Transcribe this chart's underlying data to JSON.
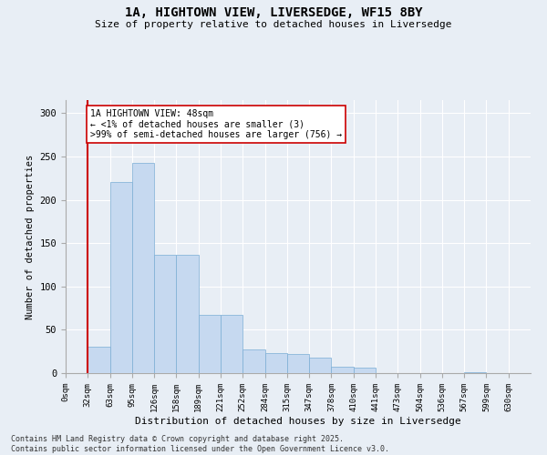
{
  "title_line1": "1A, HIGHTOWN VIEW, LIVERSEDGE, WF15 8BY",
  "title_line2": "Size of property relative to detached houses in Liversedge",
  "xlabel": "Distribution of detached houses by size in Liversedge",
  "ylabel": "Number of detached properties",
  "bin_labels": [
    "0sqm",
    "32sqm",
    "63sqm",
    "95sqm",
    "126sqm",
    "158sqm",
    "189sqm",
    "221sqm",
    "252sqm",
    "284sqm",
    "315sqm",
    "347sqm",
    "378sqm",
    "410sqm",
    "441sqm",
    "473sqm",
    "504sqm",
    "536sqm",
    "567sqm",
    "599sqm",
    "630sqm"
  ],
  "bar_heights": [
    0,
    30,
    220,
    243,
    137,
    137,
    67,
    67,
    27,
    23,
    22,
    18,
    7,
    6,
    0,
    0,
    0,
    0,
    1,
    0,
    0
  ],
  "bar_facecolor": "#c6d9f0",
  "bar_edgecolor": "#7aadd4",
  "vline_x": 1.0,
  "vline_color": "#cc0000",
  "annotation_text": "1A HIGHTOWN VIEW: 48sqm\n← <1% of detached houses are smaller (3)\n>99% of semi-detached houses are larger (756) →",
  "annotation_box_facecolor": "#ffffff",
  "annotation_box_edgecolor": "#cc0000",
  "ylim": [
    0,
    315
  ],
  "yticks": [
    0,
    50,
    100,
    150,
    200,
    250,
    300
  ],
  "bg_color": "#e8eef5",
  "footer_text": "Contains HM Land Registry data © Crown copyright and database right 2025.\nContains public sector information licensed under the Open Government Licence v3.0."
}
